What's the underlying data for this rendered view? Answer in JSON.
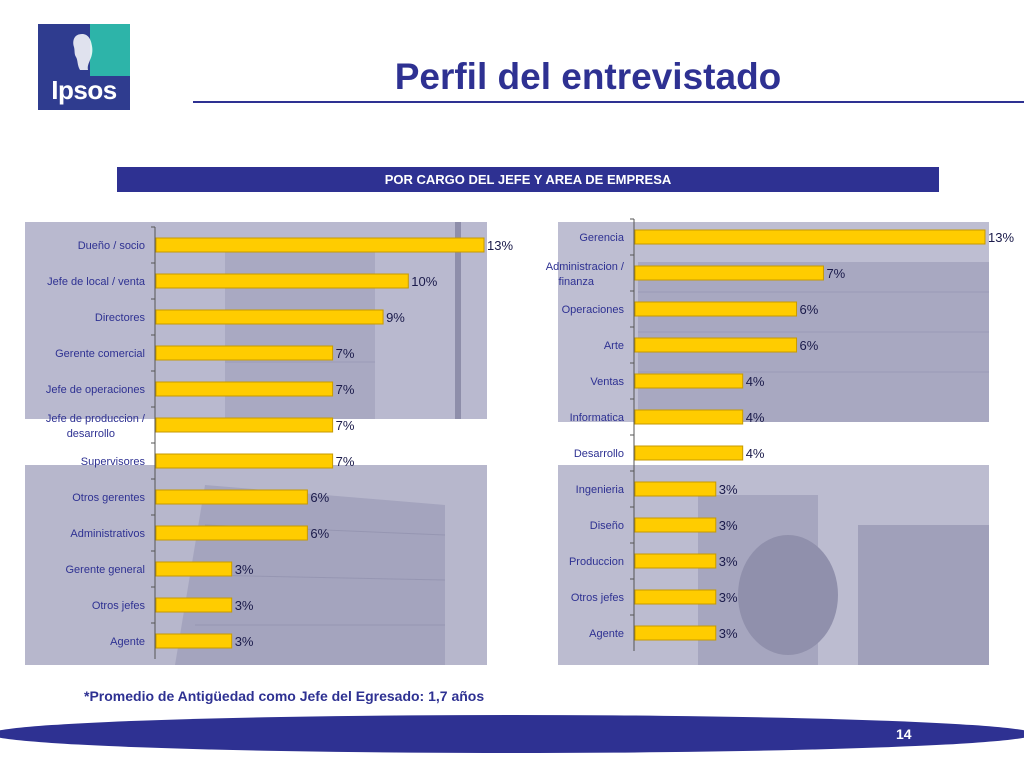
{
  "logo": {
    "text": "Ipsos"
  },
  "header": {
    "title": "Perfil del entrevistado"
  },
  "section": {
    "label": "POR  CARGO DEL JEFE  Y AREA DE EMPRESA"
  },
  "footnote": "*Promedio de Antigüedad como Jefe del Egresado: 1,7 años",
  "page_number": "14",
  "colors": {
    "brand_blue": "#2e3192",
    "bar_fill": "#ffcc00",
    "bar_stroke": "#c79a00",
    "logo_teal": "#2db4a9"
  },
  "chart_data": [
    {
      "type": "bar",
      "orientation": "horizontal",
      "categories": [
        "Dueño / socio",
        "Jefe de local / venta",
        "Directores",
        "Gerente comercial",
        "Jefe de operaciones",
        "Jefe de produccion  /\ndesarrollo",
        "Supervisores",
        "Otros gerentes",
        "Administrativos",
        "Gerente general",
        "Otros jefes",
        "Agente"
      ],
      "values": [
        13,
        10,
        9,
        7,
        7,
        7,
        7,
        6,
        6,
        3,
        3,
        3
      ],
      "data_labels": [
        "13%",
        "10%",
        "9%",
        "7%",
        "7%",
        "7%",
        "7%",
        "6%",
        "6%",
        "3%",
        "3%",
        "3%"
      ],
      "xlim": [
        0,
        13
      ]
    },
    {
      "type": "bar",
      "orientation": "horizontal",
      "categories": [
        "Gerencia",
        "Administracion /\nfinanza",
        "Operaciones",
        "Arte",
        "Ventas",
        "Informatica",
        "Desarrollo",
        "Ingenieria",
        "Diseño",
        "Produccion",
        "Otros jefes",
        "Agente"
      ],
      "values": [
        13,
        7,
        6,
        6,
        4,
        4,
        4,
        3,
        3,
        3,
        3,
        3
      ],
      "data_labels": [
        "13%",
        "7%",
        "6%",
        "6%",
        "4%",
        "4%",
        "4%",
        "3%",
        "3%",
        "3%",
        "3%",
        "3%"
      ],
      "xlim": [
        0,
        13
      ]
    }
  ]
}
